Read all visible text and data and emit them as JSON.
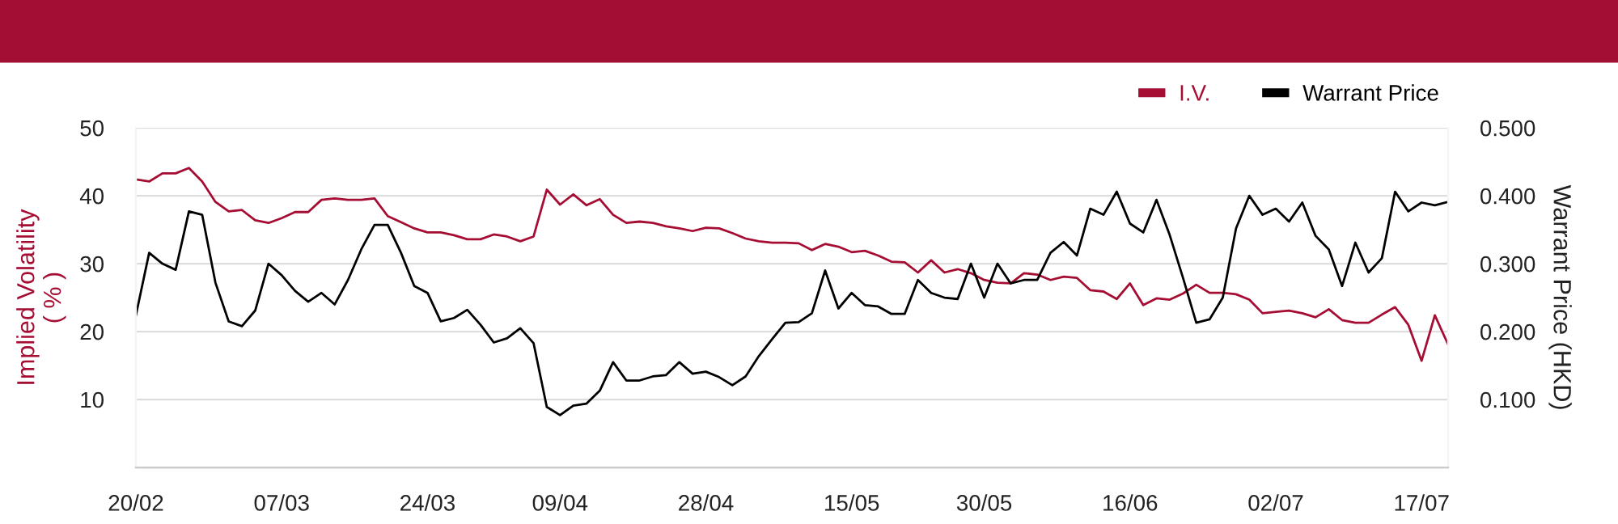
{
  "chart_data": {
    "type": "line",
    "categories": [
      "20/02",
      null,
      null,
      null,
      null,
      null,
      null,
      null,
      null,
      null,
      null,
      "07/03",
      null,
      null,
      null,
      null,
      null,
      null,
      null,
      null,
      null,
      null,
      "24/03",
      null,
      null,
      null,
      null,
      null,
      null,
      null,
      null,
      null,
      "09/04",
      null,
      null,
      null,
      null,
      null,
      null,
      null,
      null,
      null,
      null,
      "28/04",
      null,
      null,
      null,
      null,
      null,
      null,
      null,
      null,
      null,
      null,
      "15/05",
      null,
      null,
      null,
      null,
      null,
      null,
      null,
      null,
      null,
      "30/05",
      null,
      null,
      null,
      null,
      null,
      null,
      null,
      null,
      null,
      null,
      "16/06",
      null,
      null,
      null,
      null,
      null,
      null,
      null,
      null,
      null,
      null,
      "02/07",
      null,
      null,
      null,
      null,
      null,
      null,
      null,
      null,
      null,
      null,
      "17/07",
      null,
      null
    ],
    "series": [
      {
        "name": "I.V.",
        "color": "#a50d33",
        "values": [
          42.4,
          42.1,
          43.3,
          43.3,
          44.1,
          42.1,
          39.1,
          37.7,
          37.9,
          36.4,
          36.0,
          36.7,
          37.6,
          37.6,
          39.4,
          39.6,
          39.4,
          39.4,
          39.6,
          37.0,
          36.1,
          35.2,
          34.6,
          34.6,
          34.2,
          33.6,
          33.6,
          34.3,
          34.0,
          33.3,
          34.0,
          40.9,
          38.7,
          40.2,
          38.6,
          39.5,
          37.2,
          36.0,
          36.2,
          36.0,
          35.5,
          35.2,
          34.8,
          35.3,
          35.2,
          34.5,
          33.7,
          33.3,
          33.1,
          33.1,
          33.0,
          32.0,
          32.9,
          32.5,
          31.7,
          31.9,
          31.2,
          30.3,
          30.2,
          28.7,
          30.5,
          28.7,
          29.2,
          28.6,
          27.6,
          27.2,
          27.1,
          28.6,
          28.4,
          27.6,
          28.1,
          27.9,
          26.1,
          25.9,
          24.8,
          27.1,
          23.9,
          24.9,
          24.7,
          25.6,
          26.9,
          25.7,
          25.7,
          25.5,
          24.7,
          22.7,
          22.9,
          23.1,
          22.7,
          22.1,
          23.3,
          21.7,
          21.3,
          21.3,
          22.5,
          23.6,
          21.0,
          15.7,
          22.4,
          18.1
        ]
      },
      {
        "name": "Warrant Price",
        "color": "#000000",
        "axis": "y2",
        "values": [
          0.224,
          0.316,
          0.3,
          0.291,
          0.377,
          0.372,
          0.272,
          0.215,
          0.208,
          0.231,
          0.3,
          0.283,
          0.26,
          0.244,
          0.257,
          0.24,
          0.276,
          0.321,
          0.357,
          0.357,
          0.316,
          0.267,
          0.257,
          0.215,
          0.22,
          0.232,
          0.21,
          0.184,
          0.19,
          0.205,
          0.183,
          0.089,
          0.077,
          0.091,
          0.094,
          0.113,
          0.155,
          0.128,
          0.128,
          0.134,
          0.136,
          0.155,
          0.138,
          0.141,
          0.133,
          0.121,
          0.134,
          0.164,
          0.189,
          0.213,
          0.214,
          0.227,
          0.29,
          0.234,
          0.257,
          0.239,
          0.237,
          0.226,
          0.226,
          0.276,
          0.257,
          0.25,
          0.248,
          0.3,
          0.25,
          0.3,
          0.271,
          0.276,
          0.276,
          0.316,
          0.332,
          0.312,
          0.381,
          0.372,
          0.406,
          0.359,
          0.346,
          0.394,
          0.342,
          0.279,
          0.213,
          0.218,
          0.25,
          0.352,
          0.4,
          0.372,
          0.381,
          0.362,
          0.39,
          0.341,
          0.321,
          0.267,
          0.331,
          0.287,
          0.308,
          0.406,
          0.377,
          0.39,
          0.386,
          0.391
        ]
      }
    ],
    "ylabel": "Implied Volatility\n( % )",
    "y2label": "Warrant Price (HKD)",
    "ylim": [
      0,
      50
    ],
    "yticks": [
      {
        "value": 0,
        "label": null
      },
      10,
      20,
      30,
      40,
      50
    ],
    "y2lim": [
      0,
      0.5
    ],
    "y2ticks": [
      {
        "value": 0,
        "label": null
      },
      {
        "value": 0.1,
        "label": "0.100"
      },
      {
        "value": 0.2,
        "label": "0.200"
      },
      {
        "value": 0.3,
        "label": "0.300"
      },
      {
        "value": 0.4,
        "label": "0.400"
      },
      {
        "value": 0.5,
        "label": "0.500"
      }
    ],
    "grid": "y",
    "legend": "top right",
    "marker": "none",
    "line_style": "solid"
  }
}
